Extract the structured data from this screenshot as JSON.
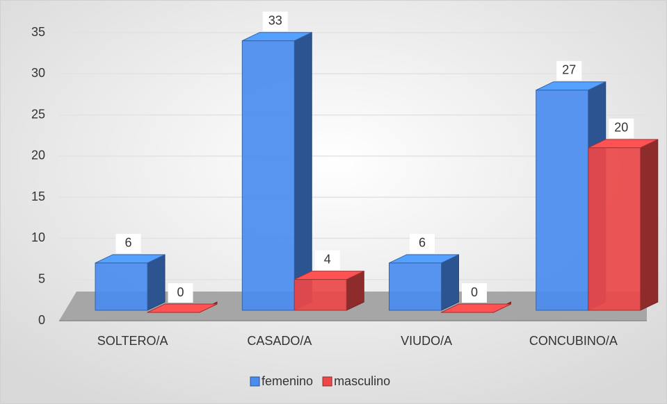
{
  "chart_data": {
    "type": "bar3d",
    "categories": [
      "SOLTERO/A",
      "CASADO/A",
      "VIUDO/A",
      "CONCUBINO/A"
    ],
    "series": [
      {
        "name": "femenino",
        "color": "#4a8cf0",
        "values": [
          6,
          33,
          6,
          27
        ]
      },
      {
        "name": "masculino",
        "color": "#ec4848",
        "values": [
          0,
          4,
          0,
          20
        ]
      }
    ],
    "ylim": [
      0,
      35
    ],
    "yticks": [
      0,
      5,
      10,
      15,
      20,
      25,
      30,
      35
    ],
    "grid": true,
    "legend": "bottom"
  }
}
